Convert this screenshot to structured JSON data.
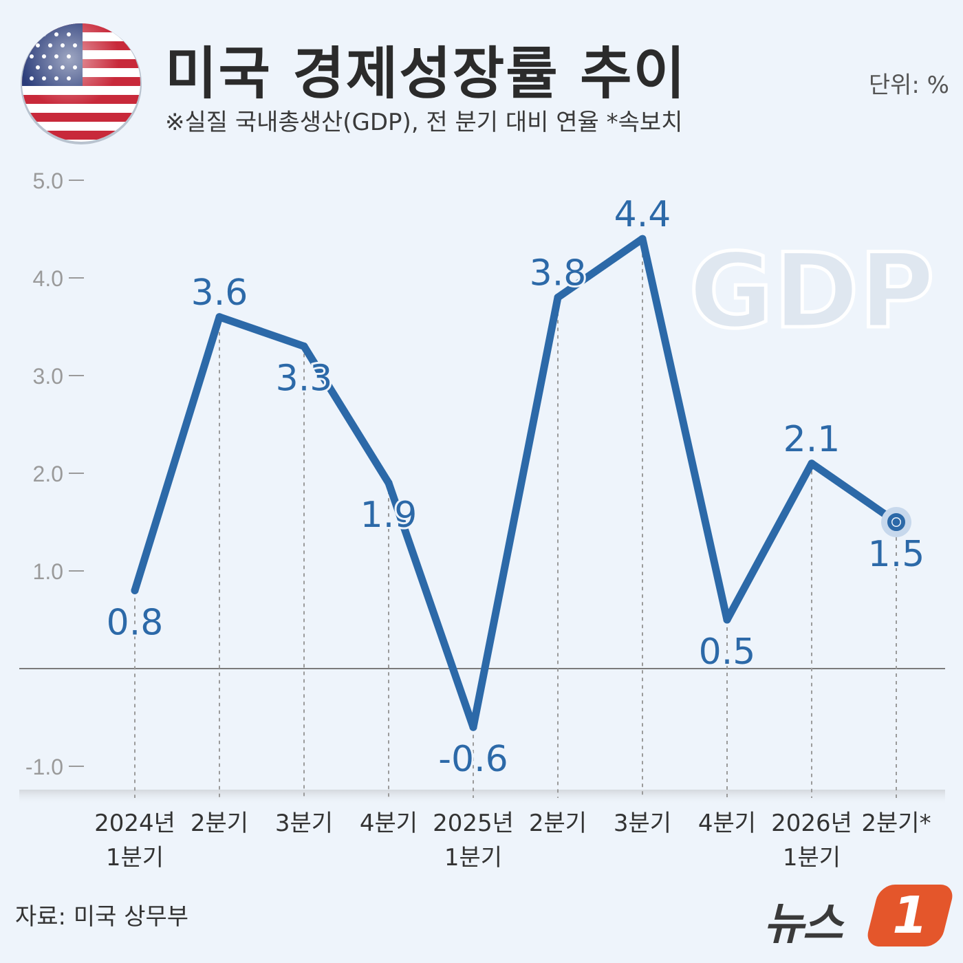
{
  "header": {
    "title": "미국 경제성장률 추이",
    "subtitle": "※실질 국내총생산(GDP), 전 분기 대비 연율  *속보치",
    "unit": "단위: %"
  },
  "footer": {
    "source": "자료: 미국 상무부",
    "logo_text": "뉴스",
    "logo_badge": "1"
  },
  "watermark": "GDP",
  "colors": {
    "line": "#2c69a8",
    "label": "#2c69a8",
    "axis_text": "#9a9a9a",
    "background": "#eef4fb"
  },
  "chart_data": {
    "type": "line",
    "categories": [
      [
        "2024년",
        "1분기"
      ],
      [
        "2분기"
      ],
      [
        "3분기"
      ],
      [
        "4분기"
      ],
      [
        "2025년",
        "1분기"
      ],
      [
        "2분기"
      ],
      [
        "3분기"
      ],
      [
        "4분기"
      ],
      [
        "2026년",
        "1분기"
      ],
      [
        "2분기*"
      ]
    ],
    "series": [
      {
        "values": [
          0.8,
          3.6,
          3.3,
          1.9,
          -0.6,
          3.8,
          4.4,
          0.5,
          2.1,
          1.5
        ]
      }
    ],
    "data_labels": [
      "0.8",
      "3.6",
      "3.3",
      "1.9",
      "-0.6",
      "3.8",
      "4.4",
      "0.5",
      "2.1",
      "1.5"
    ],
    "yticks": [
      "5.0",
      "4.0",
      "3.0",
      "2.0",
      "1.0",
      "-1.0"
    ],
    "ytick_values": [
      5,
      4,
      3,
      2,
      1,
      -1
    ],
    "ylim": [
      -1.3,
      5.0
    ],
    "grid": false,
    "highlight_last_point": true
  }
}
